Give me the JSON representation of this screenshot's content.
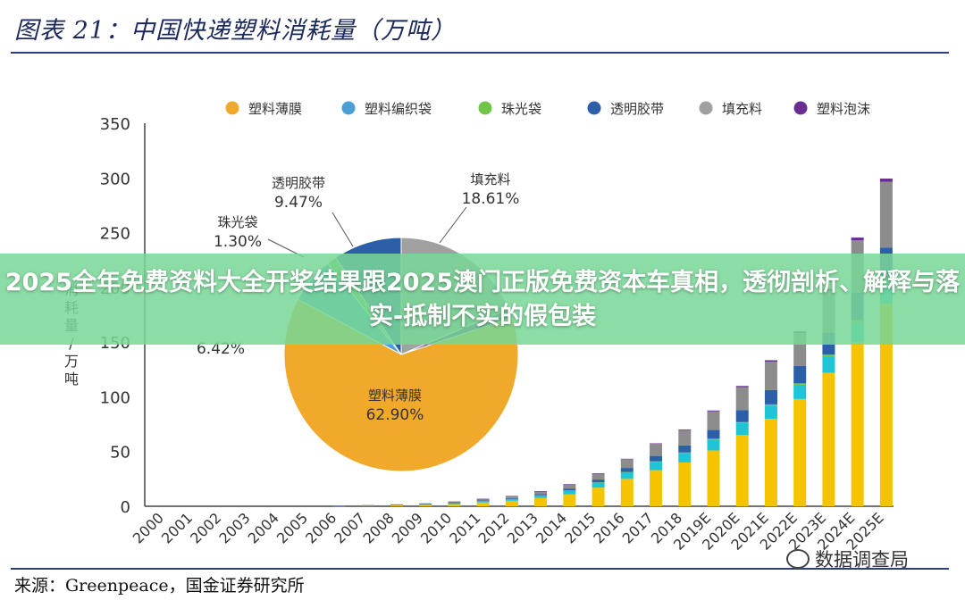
{
  "header": {
    "title": "图表 21：中国快递塑料消耗量（万吨）"
  },
  "footer": {
    "source": "来源：Greenpeace，国金证券研究所"
  },
  "overlay": {
    "headline": "2025全年免费资料大全开奖结果跟2025澳门正版免费资本车真相，透彻剖析、解释与落实-抵制不实的假包装"
  },
  "watermark": {
    "text": "数据调查局",
    "icon": "wechat-icon"
  },
  "chart_data": {
    "type": "bar",
    "stacked": true,
    "ylabel": "消耗量/万吨",
    "ylim": [
      0,
      350
    ],
    "yticks": [
      0,
      50,
      100,
      150,
      200,
      250,
      300,
      350
    ],
    "legend_position": "top",
    "categories": [
      "2000",
      "2001",
      "2002",
      "2003",
      "2004",
      "2005",
      "2006",
      "2007",
      "2008",
      "2009",
      "2010",
      "2011",
      "2012",
      "2013",
      "2014",
      "2015",
      "2016",
      "2017",
      "2018",
      "2019E",
      "2020E",
      "2021E",
      "2022E",
      "2023E",
      "2024E",
      "2025E"
    ],
    "series": [
      {
        "name": "塑料薄膜",
        "color": "#f5c400",
        "values": [
          0,
          0,
          0,
          0,
          0,
          0,
          0.3,
          0.5,
          0.9,
          1.2,
          2.0,
          3.5,
          5.0,
          7.5,
          11,
          17,
          25,
          33,
          40,
          51,
          65,
          80,
          98,
          122,
          150,
          185
        ]
      },
      {
        "name": "塑料编织袋",
        "color": "#1fc4d6",
        "values": [
          0,
          0,
          0,
          0,
          0,
          0,
          0.1,
          0.2,
          0.3,
          0.5,
          0.8,
          1.2,
          1.6,
          2.3,
          3.2,
          4.5,
          6,
          7.5,
          8.5,
          10,
          11,
          12,
          13,
          15,
          18,
          20
        ]
      },
      {
        "name": "珠光袋",
        "color": "#70c44a",
        "values": [
          0,
          0,
          0,
          0,
          0,
          0,
          0,
          0,
          0,
          0.1,
          0.1,
          0.1,
          0.1,
          0.2,
          0.2,
          0.3,
          0.4,
          0.5,
          0.6,
          0.7,
          0.9,
          1.1,
          1.3,
          1.6,
          2.0,
          2.4
        ]
      },
      {
        "name": "透明胶带",
        "color": "#2b5fa8",
        "values": [
          0,
          0,
          0,
          0,
          0,
          0,
          0.1,
          0.1,
          0.2,
          0.3,
          0.4,
          0.6,
          0.8,
          1.2,
          1.8,
          2.6,
          3.6,
          5.0,
          6.5,
          8,
          11,
          13,
          16,
          20,
          25,
          29
        ]
      },
      {
        "name": "填充料",
        "color": "#8c8c8c",
        "values": [
          0,
          0,
          0,
          0,
          0,
          0,
          0.2,
          0.3,
          0.4,
          0.6,
          0.9,
          1.3,
          1.8,
          2.6,
          3.8,
          5.5,
          8,
          11,
          14,
          17,
          21,
          26,
          30,
          38,
          48,
          60
        ]
      },
      {
        "name": "塑料泡沫",
        "color": "#6a2d91",
        "values": [
          0,
          0,
          0,
          0,
          0,
          0,
          0,
          0,
          0,
          0,
          0.1,
          0.1,
          0.1,
          0.1,
          0.2,
          0.3,
          0.4,
          0.5,
          0.6,
          0.8,
          1.0,
          1.3,
          1.6,
          2.0,
          2.5,
          3.0
        ]
      }
    ],
    "inset_pie": {
      "type": "pie",
      "slices": [
        {
          "name": "塑料薄膜",
          "value": 62.9,
          "label": "62.90%",
          "color": "#f0a92a"
        },
        {
          "name": "塑料编织袋",
          "value": 6.42,
          "label": "6.42%",
          "color": "#4a9fd4"
        },
        {
          "name": "珠光袋",
          "value": 1.3,
          "label": "1.30%",
          "color": "#70c44a"
        },
        {
          "name": "透明胶带",
          "value": 9.47,
          "label": "9.47%",
          "color": "#2b5fa8"
        },
        {
          "name": "填充料",
          "value": 18.61,
          "label": "18.61%",
          "color": "#a0a0a0"
        },
        {
          "name": "塑料泡沫",
          "value": 1.3,
          "label": "",
          "color": "#6a2d91"
        }
      ]
    }
  }
}
